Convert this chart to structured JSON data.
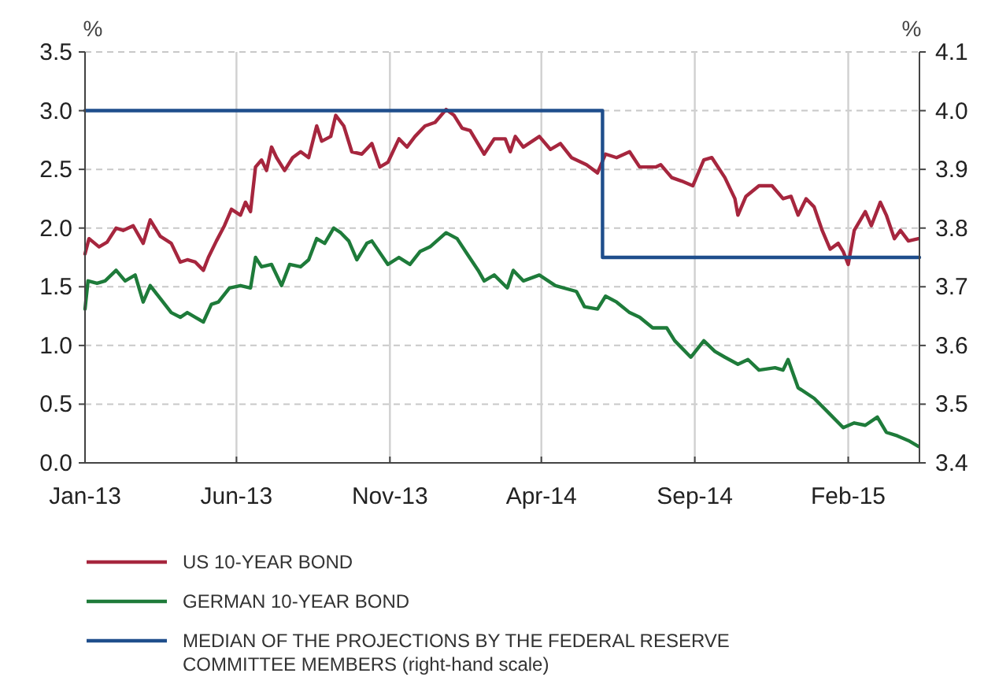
{
  "chart_data": {
    "type": "line",
    "ylabel": "%",
    "y2label": "%",
    "xlim": [
      "2013-01-01",
      "2015-04-13"
    ],
    "xticks": [
      {
        "value": "2013-01-01",
        "label": "Jan-13"
      },
      {
        "value": "2013-06-01",
        "label": "Jun-13"
      },
      {
        "value": "2013-11-01",
        "label": "Nov-13"
      },
      {
        "value": "2014-04-01",
        "label": "Apr-14"
      },
      {
        "value": "2014-09-01",
        "label": "Sep-14"
      },
      {
        "value": "2015-02-01",
        "label": "Feb-15"
      }
    ],
    "ylim": [
      0,
      3.5
    ],
    "yticks": [
      {
        "value": 0,
        "label": "0.0"
      },
      0.5,
      {
        "value": 1,
        "label": "1.0"
      },
      1.5,
      {
        "value": 2,
        "label": "2.0"
      },
      2.5,
      {
        "value": 3,
        "label": "3.0"
      },
      3.5
    ],
    "y2lim": [
      3.4,
      4.1
    ],
    "y2ticks": [
      3.4,
      3.5,
      3.6,
      3.7,
      3.8,
      3.9,
      {
        "value": 4,
        "label": "4.0"
      },
      4.1
    ],
    "grid": true,
    "legend": "bottom",
    "line_style": "solid",
    "marker": "none",
    "series": [
      {
        "name": "US 10-YEAR BOND",
        "color": "#a6263e",
        "x": [
          "2013-01-01",
          "2013-01-05",
          "2013-01-15",
          "2013-01-23",
          "2013-02-01",
          "2013-02-08",
          "2013-02-18",
          "2013-02-28",
          "2013-03-07",
          "2013-03-17",
          "2013-03-28",
          "2013-04-06",
          "2013-04-13",
          "2013-04-21",
          "2013-04-29",
          "2013-05-04",
          "2013-05-12",
          "2013-05-20",
          "2013-05-27",
          "2013-06-05",
          "2013-06-10",
          "2013-06-15",
          "2013-06-20",
          "2013-06-26",
          "2013-07-01",
          "2013-07-06",
          "2013-07-11",
          "2013-07-19",
          "2013-07-27",
          "2013-08-04",
          "2013-08-12",
          "2013-08-20",
          "2013-08-25",
          "2013-09-03",
          "2013-09-08",
          "2013-09-16",
          "2013-09-24",
          "2013-10-04",
          "2013-10-14",
          "2013-10-22",
          "2013-10-30",
          "2013-11-10",
          "2013-11-18",
          "2013-11-26",
          "2013-12-06",
          "2013-12-16",
          "2013-12-27",
          "2014-01-04",
          "2014-01-12",
          "2014-01-20",
          "2014-02-03",
          "2014-02-13",
          "2014-02-24",
          "2014-03-01",
          "2014-03-06",
          "2014-03-14",
          "2014-03-30",
          "2014-04-10",
          "2014-04-20",
          "2014-05-01",
          "2014-05-16",
          "2014-05-27",
          "2014-06-04",
          "2014-06-15",
          "2014-06-28",
          "2014-07-08",
          "2014-07-24",
          "2014-07-29",
          "2014-08-09",
          "2014-08-19",
          "2014-08-30",
          "2014-09-10",
          "2014-09-18",
          "2014-10-01",
          "2014-10-11",
          "2014-10-14",
          "2014-10-22",
          "2014-11-04",
          "2014-11-17",
          "2014-11-28",
          "2014-12-06",
          "2014-12-13",
          "2014-12-21",
          "2014-12-29",
          "2015-01-06",
          "2015-01-14",
          "2015-01-22",
          "2015-01-27",
          "2015-02-01",
          "2015-02-07",
          "2015-02-18",
          "2015-02-24",
          "2015-03-05",
          "2015-03-11",
          "2015-03-19",
          "2015-03-25",
          "2015-04-02",
          "2015-04-12"
        ],
        "values": [
          1.78,
          1.91,
          1.84,
          1.88,
          2.0,
          1.98,
          2.02,
          1.87,
          2.07,
          1.93,
          1.87,
          1.71,
          1.73,
          1.71,
          1.64,
          1.75,
          1.89,
          2.02,
          2.16,
          2.11,
          2.22,
          2.14,
          2.52,
          2.58,
          2.49,
          2.69,
          2.6,
          2.49,
          2.6,
          2.65,
          2.6,
          2.87,
          2.74,
          2.78,
          2.96,
          2.87,
          2.65,
          2.63,
          2.72,
          2.52,
          2.56,
          2.76,
          2.69,
          2.78,
          2.87,
          2.9,
          3.01,
          2.96,
          2.85,
          2.83,
          2.63,
          2.76,
          2.76,
          2.65,
          2.78,
          2.69,
          2.78,
          2.67,
          2.72,
          2.6,
          2.54,
          2.47,
          2.63,
          2.6,
          2.65,
          2.52,
          2.52,
          2.54,
          2.43,
          2.4,
          2.36,
          2.58,
          2.6,
          2.43,
          2.25,
          2.11,
          2.27,
          2.36,
          2.36,
          2.25,
          2.27,
          2.11,
          2.25,
          2.18,
          1.98,
          1.82,
          1.87,
          1.8,
          1.69,
          1.98,
          2.14,
          2.02,
          2.22,
          2.11,
          1.91,
          1.98,
          1.89,
          1.91
        ]
      },
      {
        "name": "GERMAN 10-YEAR BOND",
        "color": "#1e7b3a",
        "x": [
          "2013-01-01",
          "2013-01-04",
          "2013-01-13",
          "2013-01-21",
          "2013-02-01",
          "2013-02-10",
          "2013-02-20",
          "2013-02-28",
          "2013-03-07",
          "2013-03-17",
          "2013-03-28",
          "2013-04-06",
          "2013-04-13",
          "2013-04-21",
          "2013-04-29",
          "2013-05-07",
          "2013-05-14",
          "2013-05-25",
          "2013-06-05",
          "2013-06-15",
          "2013-06-20",
          "2013-06-26",
          "2013-07-06",
          "2013-07-16",
          "2013-07-24",
          "2013-08-04",
          "2013-08-12",
          "2013-08-20",
          "2013-08-28",
          "2013-09-06",
          "2013-09-13",
          "2013-09-21",
          "2013-09-29",
          "2013-10-09",
          "2013-10-14",
          "2013-10-30",
          "2013-11-10",
          "2013-11-21",
          "2013-12-01",
          "2013-12-11",
          "2013-12-27",
          "2014-01-07",
          "2014-01-17",
          "2014-01-28",
          "2014-02-03",
          "2014-02-13",
          "2014-02-26",
          "2014-03-04",
          "2014-03-14",
          "2014-03-30",
          "2014-04-15",
          "2014-05-06",
          "2014-05-14",
          "2014-05-27",
          "2014-06-04",
          "2014-06-15",
          "2014-06-28",
          "2014-07-08",
          "2014-07-21",
          "2014-08-04",
          "2014-08-12",
          "2014-08-28",
          "2014-09-10",
          "2014-09-21",
          "2014-10-01",
          "2014-10-14",
          "2014-10-24",
          "2014-11-04",
          "2014-11-20",
          "2014-11-28",
          "2014-12-03",
          "2014-12-13",
          "2014-12-29",
          "2015-01-12",
          "2015-01-27",
          "2015-02-07",
          "2015-02-18",
          "2015-03-02",
          "2015-03-11",
          "2015-03-22",
          "2015-04-02",
          "2015-04-12"
        ],
        "values": [
          1.31,
          1.55,
          1.53,
          1.55,
          1.64,
          1.55,
          1.6,
          1.37,
          1.51,
          1.4,
          1.28,
          1.24,
          1.28,
          1.24,
          1.2,
          1.35,
          1.37,
          1.49,
          1.51,
          1.49,
          1.75,
          1.67,
          1.69,
          1.51,
          1.69,
          1.67,
          1.73,
          1.91,
          1.87,
          2.0,
          1.96,
          1.89,
          1.73,
          1.87,
          1.89,
          1.69,
          1.75,
          1.69,
          1.8,
          1.84,
          1.96,
          1.91,
          1.78,
          1.64,
          1.55,
          1.6,
          1.49,
          1.64,
          1.55,
          1.6,
          1.51,
          1.46,
          1.33,
          1.31,
          1.42,
          1.37,
          1.28,
          1.24,
          1.15,
          1.15,
          1.04,
          0.9,
          1.04,
          0.95,
          0.9,
          0.84,
          0.88,
          0.79,
          0.81,
          0.79,
          0.88,
          0.64,
          0.55,
          0.43,
          0.3,
          0.34,
          0.32,
          0.39,
          0.26,
          0.23,
          0.19,
          0.14
        ]
      },
      {
        "name": "MEDIAN OF THE PROJECTIONS BY THE FEDERAL RESERVE COMMITTEE MEMBERS (right-hand scale)",
        "color": "#1f4e8c",
        "type": "step",
        "axis": "y2",
        "x": [
          "2013-01-01",
          "2014-06-01",
          "2015-04-13"
        ],
        "values": [
          4.0,
          3.75,
          3.75
        ]
      }
    ]
  }
}
